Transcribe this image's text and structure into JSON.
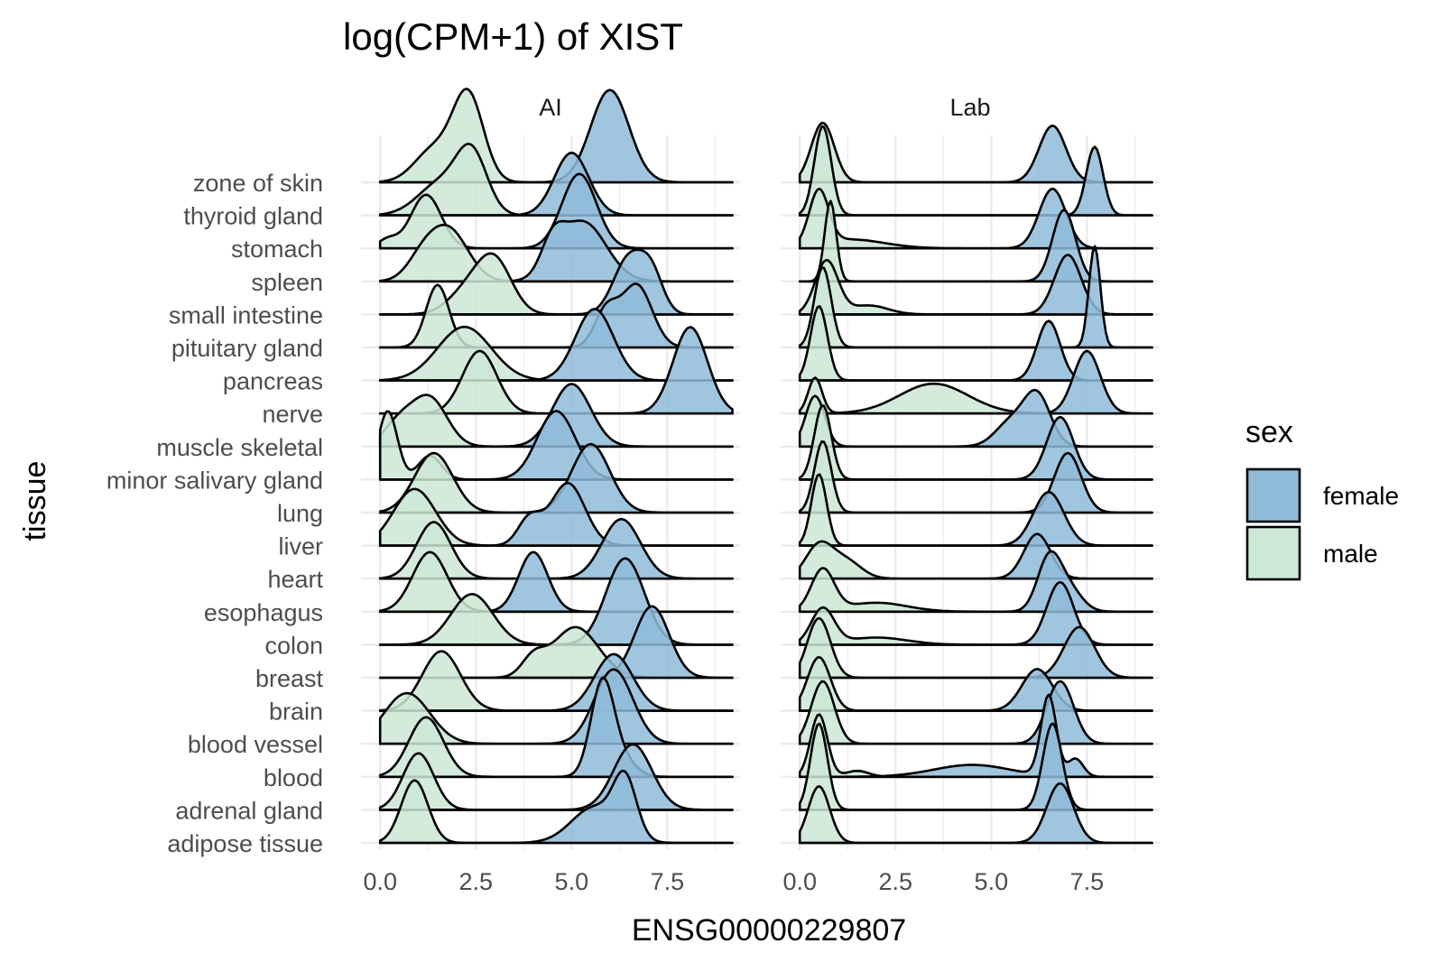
{
  "chart_data": {
    "type": "ridgeline",
    "title": "log(CPM+1) of XIST",
    "xlabel": "ENSG00000229807",
    "ylabel": "tissue",
    "xlim": [
      -0.5,
      9.4
    ],
    "x_ticks": [
      0.0,
      2.5,
      5.0,
      7.5
    ],
    "x_tick_labels": [
      "0.0",
      "2.5",
      "5.0",
      "7.5"
    ],
    "grid": true,
    "legend": {
      "title": "sex",
      "position": "right",
      "entries": [
        {
          "label": "female",
          "color": "#8fbbd9"
        },
        {
          "label": "male",
          "color": "#cde8d6"
        }
      ]
    },
    "colors": {
      "female": "#8fbbd9",
      "male": "#cde8d6",
      "grid": "#ebebeb",
      "outline": "#000000"
    },
    "categories": [
      "adipose tissue",
      "adrenal gland",
      "blood",
      "blood vessel",
      "brain",
      "breast",
      "colon",
      "esophagus",
      "heart",
      "liver",
      "lung",
      "minor salivary gland",
      "muscle skeletal",
      "nerve",
      "pancreas",
      "pituitary gland",
      "small intestine",
      "spleen",
      "stomach",
      "thyroid gland",
      "zone of skin"
    ],
    "panels": [
      {
        "name": "AI",
        "series": [
          {
            "name": "male",
            "modes": [
              [
                [
                  0.9,
                  0.35,
                  1.05
                ]
              ],
              [
                [
                  1.0,
                  0.4,
                  0.95
                ]
              ],
              [
                [
                  1.2,
                  0.45,
                  1.0
                ]
              ],
              [
                [
                  0.7,
                  0.6,
                  0.85
                ]
              ],
              [
                [
                  1.6,
                  0.5,
                  1.0
                ]
              ],
              [
                [
                  5.1,
                  0.6,
                  0.85
                ],
                [
                  4.0,
                  0.3,
                  0.3
                ]
              ],
              [
                [
                  2.4,
                  0.55,
                  0.85
                ]
              ],
              [
                [
                  1.3,
                  0.45,
                  1.0
                ]
              ],
              [
                [
                  1.4,
                  0.45,
                  0.95
                ]
              ],
              [
                [
                  0.9,
                  0.55,
                  0.95
                ]
              ],
              [
                [
                  1.4,
                  0.5,
                  1.0
                ]
              ],
              [
                [
                  0.2,
                  0.25,
                  1.15
                ],
                [
                  1.3,
                  0.3,
                  0.4
                ]
              ],
              [
                [
                  1.3,
                  0.45,
                  0.8
                ],
                [
                  0.5,
                  0.4,
                  0.4
                ]
              ],
              [
                [
                  2.6,
                  0.45,
                  1.05
                ]
              ],
              [
                [
                  2.2,
                  0.7,
                  0.9
                ]
              ],
              [
                [
                  1.5,
                  0.3,
                  1.05
                ]
              ],
              [
                [
                  3.0,
                  0.45,
                  0.85
                ],
                [
                  2.3,
                  0.5,
                  0.4
                ]
              ],
              [
                [
                  1.8,
                  0.5,
                  0.85
                ],
                [
                  1.1,
                  0.4,
                  0.35
                ]
              ],
              [
                [
                  1.2,
                  0.4,
                  0.9
                ],
                [
                  0.2,
                  0.25,
                  0.15
                ]
              ],
              [
                [
                  2.4,
                  0.4,
                  0.95
                ],
                [
                  1.6,
                  0.6,
                  0.55
                ]
              ],
              [
                [
                  2.3,
                  0.4,
                  1.45
                ],
                [
                  1.4,
                  0.5,
                  0.55
                ]
              ]
            ]
          },
          {
            "name": "female",
            "modes": [
              [
                [
                  6.4,
                  0.3,
                  0.95
                ],
                [
                  5.6,
                  0.6,
                  0.6
                ]
              ],
              [
                [
                  6.6,
                  0.5,
                  1.1
                ]
              ],
              [
                [
                  5.8,
                  0.3,
                  1.55
                ],
                [
                  6.3,
                  0.35,
                  0.3
                ]
              ],
              [
                [
                  6.1,
                  0.5,
                  1.25
                ]
              ],
              [
                [
                  6.1,
                  0.5,
                  0.95
                ]
              ],
              [
                [
                  7.1,
                  0.45,
                  1.2
                ]
              ],
              [
                [
                  6.4,
                  0.5,
                  1.45
                ]
              ],
              [
                [
                  4.0,
                  0.38,
                  1.0
                ]
              ],
              [
                [
                  6.3,
                  0.5,
                  1.0
                ]
              ],
              [
                [
                  4.9,
                  0.45,
                  1.05
                ],
                [
                  3.9,
                  0.3,
                  0.45
                ]
              ],
              [
                [
                  5.5,
                  0.5,
                  1.15
                ]
              ],
              [
                [
                  4.6,
                  0.5,
                  1.15
                ]
              ],
              [
                [
                  5.0,
                  0.5,
                  1.05
                ]
              ],
              [
                [
                  8.1,
                  0.45,
                  1.45
                ]
              ],
              [
                [
                  5.6,
                  0.5,
                  1.2
                ]
              ],
              [
                [
                  6.7,
                  0.4,
                  1.05
                ],
                [
                  5.9,
                  0.3,
                  0.6
                ]
              ],
              [
                [
                  6.5,
                  0.4,
                  0.95
                ],
                [
                  7.1,
                  0.3,
                  0.6
                ]
              ],
              [
                [
                  5.3,
                  0.6,
                  1.0
                ],
                [
                  4.5,
                  0.3,
                  0.5
                ]
              ],
              [
                [
                  5.2,
                  0.45,
                  1.25
                ]
              ],
              [
                [
                  5.0,
                  0.45,
                  1.05
                ]
              ],
              [
                [
                  6.0,
                  0.5,
                  1.55
                ]
              ]
            ]
          }
        ]
      },
      {
        "name": "Lab",
        "series": [
          {
            "name": "male",
            "modes": [
              [
                [
                  0.5,
                  0.28,
                  0.95
                ]
              ],
              [
                [
                  0.5,
                  0.22,
                  1.45
                ]
              ],
              [
                [
                  0.5,
                  0.22,
                  1.05
                ],
                [
                  1.5,
                  0.3,
                  0.1
                ]
              ],
              [
                [
                  0.6,
                  0.3,
                  1.05
                ]
              ],
              [
                [
                  0.5,
                  0.3,
                  0.9
                ]
              ],
              [
                [
                  0.5,
                  0.3,
                  1.0
                ]
              ],
              [
                [
                  0.6,
                  0.3,
                  0.6
                ],
                [
                  2.0,
                  0.8,
                  0.12
                ]
              ],
              [
                [
                  0.6,
                  0.3,
                  0.7
                ],
                [
                  2.0,
                  0.8,
                  0.15
                ]
              ],
              [
                [
                  0.5,
                  0.35,
                  0.55
                ],
                [
                  1.2,
                  0.4,
                  0.3
                ]
              ],
              [
                [
                  0.5,
                  0.2,
                  1.2
                ]
              ],
              [
                [
                  0.6,
                  0.22,
                  1.2
                ]
              ],
              [
                [
                  0.6,
                  0.22,
                  1.25
                ]
              ],
              [
                [
                  0.4,
                  0.25,
                  0.85
                ]
              ],
              [
                [
                  0.4,
                  0.18,
                  0.6
                ],
                [
                  3.5,
                  0.9,
                  0.5
                ]
              ],
              [
                [
                  0.5,
                  0.22,
                  1.25
                ]
              ],
              [
                [
                  0.6,
                  0.22,
                  1.35
                ]
              ],
              [
                [
                  0.7,
                  0.3,
                  0.9
                ],
                [
                  1.8,
                  0.5,
                  0.15
                ]
              ],
              [
                [
                  0.8,
                  0.15,
                  1.35
                ]
              ],
              [
                [
                  0.5,
                  0.25,
                  0.9
                ],
                [
                  1.3,
                  0.9,
                  0.15
                ]
              ],
              [
                [
                  0.6,
                  0.22,
                  1.5
                ]
              ],
              [
                [
                  0.6,
                  0.3,
                  1.0
                ]
              ]
            ]
          },
          {
            "name": "female",
            "modes": [
              [
                [
                  6.8,
                  0.35,
                  1.0
                ]
              ],
              [
                [
                  6.6,
                  0.25,
                  1.45
                ]
              ],
              [
                [
                  6.5,
                  0.2,
                  1.35
                ],
                [
                  4.5,
                  1.0,
                  0.2
                ],
                [
                  7.2,
                  0.2,
                  0.3
                ]
              ],
              [
                [
                  6.8,
                  0.35,
                  1.05
                ]
              ],
              [
                [
                  6.2,
                  0.4,
                  0.7
                ]
              ],
              [
                [
                  7.3,
                  0.4,
                  0.85
                ]
              ],
              [
                [
                  6.8,
                  0.35,
                  1.05
                ]
              ],
              [
                [
                  6.5,
                  0.3,
                  0.85
                ],
                [
                  7.0,
                  0.35,
                  0.4
                ]
              ],
              [
                [
                  6.2,
                  0.35,
                  0.75
                ]
              ],
              [
                [
                  6.5,
                  0.4,
                  0.9
                ]
              ],
              [
                [
                  7.0,
                  0.35,
                  1.0
                ]
              ],
              [
                [
                  6.8,
                  0.35,
                  1.05
                ]
              ],
              [
                [
                  6.2,
                  0.35,
                  0.85
                ],
                [
                  5.5,
                  0.4,
                  0.4
                ]
              ],
              [
                [
                  7.5,
                  0.35,
                  1.05
                ]
              ],
              [
                [
                  6.5,
                  0.3,
                  1.0
                ]
              ],
              [
                [
                  7.7,
                  0.15,
                  1.7
                ]
              ],
              [
                [
                  7.0,
                  0.35,
                  1.0
                ]
              ],
              [
                [
                  6.9,
                  0.3,
                  1.2
                ]
              ],
              [
                [
                  6.6,
                  0.35,
                  1.0
                ]
              ],
              [
                [
                  7.7,
                  0.22,
                  1.15
                ]
              ],
              [
                [
                  6.6,
                  0.35,
                  0.95
                ]
              ]
            ]
          }
        ]
      }
    ]
  }
}
